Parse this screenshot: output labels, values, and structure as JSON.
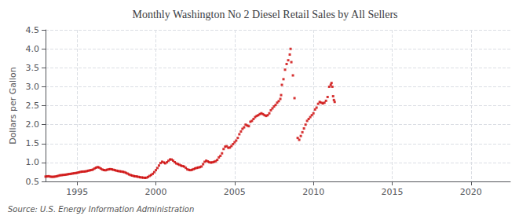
{
  "chart_data": {
    "type": "scatter",
    "title": "Monthly Washington No 2 Diesel Retail Sales by All Sellers",
    "ylabel": "Dollars per Gallon",
    "annotation": "Source: U.S. Energy Information Administration",
    "color": "#cc0000",
    "marker": "square",
    "grid": true,
    "xlim": [
      1993.0,
      2022.5
    ],
    "xticks": [
      1995,
      2000,
      2005,
      2010,
      2015,
      2020
    ],
    "ylim": [
      0.5,
      4.5
    ],
    "yticks": [
      0.5,
      {
        "value": 1.0,
        "label": "1.0"
      },
      1.5,
      {
        "value": 2.0,
        "label": "2.0"
      },
      2.5,
      {
        "value": 3.0,
        "label": "3.0"
      },
      3.5,
      {
        "value": 4.0,
        "label": "4.0"
      },
      4.5
    ],
    "x": [
      1993.0,
      1993.1,
      1993.2,
      1993.3,
      1993.4,
      1993.5,
      1993.6,
      1993.7,
      1993.8,
      1993.9,
      1994.0,
      1994.1,
      1994.2,
      1994.3,
      1994.4,
      1994.5,
      1994.6,
      1994.7,
      1994.8,
      1994.9,
      1995.0,
      1995.1,
      1995.2,
      1995.3,
      1995.4,
      1995.5,
      1995.6,
      1995.7,
      1995.8,
      1995.9,
      1996.0,
      1996.1,
      1996.2,
      1996.3,
      1996.4,
      1996.5,
      1996.6,
      1996.7,
      1996.8,
      1996.9,
      1997.0,
      1997.1,
      1997.2,
      1997.3,
      1997.4,
      1997.5,
      1997.6,
      1997.7,
      1997.8,
      1997.9,
      1998.0,
      1998.1,
      1998.2,
      1998.3,
      1998.4,
      1998.5,
      1998.6,
      1998.7,
      1998.8,
      1998.9,
      1999.0,
      1999.1,
      1999.2,
      1999.3,
      1999.4,
      1999.5,
      1999.6,
      1999.7,
      1999.8,
      1999.9,
      2000.0,
      2000.1,
      2000.2,
      2000.3,
      2000.4,
      2000.5,
      2000.6,
      2000.7,
      2000.8,
      2000.9,
      2001.0,
      2001.1,
      2001.2,
      2001.3,
      2001.4,
      2001.5,
      2001.6,
      2001.7,
      2001.8,
      2001.9,
      2002.0,
      2002.1,
      2002.2,
      2002.3,
      2002.4,
      2002.5,
      2002.6,
      2002.7,
      2002.8,
      2002.9,
      2003.0,
      2003.1,
      2003.2,
      2003.3,
      2003.4,
      2003.5,
      2003.6,
      2003.7,
      2003.8,
      2003.9,
      2004.0,
      2004.1,
      2004.2,
      2004.3,
      2004.4,
      2004.5,
      2004.6,
      2004.7,
      2004.8,
      2004.9,
      2005.0,
      2005.1,
      2005.2,
      2005.3,
      2005.4,
      2005.5,
      2005.6,
      2005.7,
      2005.8,
      2005.9,
      2006.0,
      2006.1,
      2006.2,
      2006.3,
      2006.4,
      2006.5,
      2006.6,
      2006.7,
      2006.8,
      2006.9,
      2007.0,
      2007.1,
      2007.2,
      2007.3,
      2007.4,
      2007.5,
      2007.6,
      2007.7,
      2007.8,
      2007.9,
      2007.95,
      2008.0,
      2008.1,
      2008.2,
      2008.3,
      2008.4,
      2008.5,
      2008.55,
      2008.6,
      2008.7,
      2008.8,
      2009.0,
      2009.1,
      2009.2,
      2009.3,
      2009.4,
      2009.5,
      2009.6,
      2009.7,
      2009.8,
      2009.9,
      2010.0,
      2010.1,
      2010.2,
      2010.3,
      2010.4,
      2010.5,
      2010.6,
      2010.7,
      2010.8,
      2010.9,
      2011.0,
      2011.1,
      2011.15,
      2011.2,
      2011.25,
      2011.3,
      2011.35
    ],
    "values": [
      0.628,
      0.633,
      0.638,
      0.627,
      0.622,
      0.623,
      0.628,
      0.636,
      0.647,
      0.661,
      0.665,
      0.671,
      0.675,
      0.68,
      0.688,
      0.695,
      0.7,
      0.708,
      0.715,
      0.72,
      0.728,
      0.738,
      0.75,
      0.758,
      0.76,
      0.763,
      0.77,
      0.782,
      0.792,
      0.8,
      0.812,
      0.838,
      0.862,
      0.878,
      0.868,
      0.84,
      0.815,
      0.8,
      0.795,
      0.808,
      0.818,
      0.825,
      0.82,
      0.808,
      0.798,
      0.785,
      0.775,
      0.768,
      0.762,
      0.755,
      0.745,
      0.728,
      0.708,
      0.685,
      0.668,
      0.655,
      0.642,
      0.635,
      0.63,
      0.62,
      0.61,
      0.605,
      0.6,
      0.595,
      0.598,
      0.618,
      0.645,
      0.67,
      0.7,
      0.745,
      0.798,
      0.855,
      0.92,
      0.985,
      1.02,
      1.0,
      0.978,
      1.005,
      1.045,
      1.08,
      1.078,
      1.048,
      1.008,
      0.975,
      0.958,
      0.938,
      0.918,
      0.905,
      0.892,
      0.858,
      0.818,
      0.805,
      0.798,
      0.808,
      0.825,
      0.845,
      0.858,
      0.868,
      0.878,
      0.895,
      0.955,
      1.018,
      1.048,
      1.028,
      1.005,
      0.998,
      1.005,
      1.018,
      1.035,
      1.068,
      1.135,
      1.175,
      1.242,
      1.355,
      1.418,
      1.428,
      1.388,
      1.395,
      1.435,
      1.485,
      1.535,
      1.578,
      1.648,
      1.745,
      1.818,
      1.888,
      1.928,
      1.998,
      1.975,
      1.958,
      2.075,
      2.098,
      2.148,
      2.198,
      2.228,
      2.248,
      2.278,
      2.298,
      2.275,
      2.248,
      2.228,
      2.248,
      2.298,
      2.378,
      2.428,
      2.478,
      2.518,
      2.578,
      2.618,
      2.678,
      2.778,
      3.048,
      3.198,
      3.448,
      3.598,
      3.698,
      3.848,
      3.998,
      3.648,
      3.298,
      2.698,
      1.648,
      1.598,
      1.698,
      1.798,
      1.898,
      1.998,
      2.098,
      2.148,
      2.198,
      2.248,
      2.298,
      2.398,
      2.448,
      2.548,
      2.598,
      2.578,
      2.558,
      2.578,
      2.628,
      2.728,
      2.998,
      3.048,
      3.098,
      2.998,
      2.748,
      2.648,
      2.598
    ]
  }
}
